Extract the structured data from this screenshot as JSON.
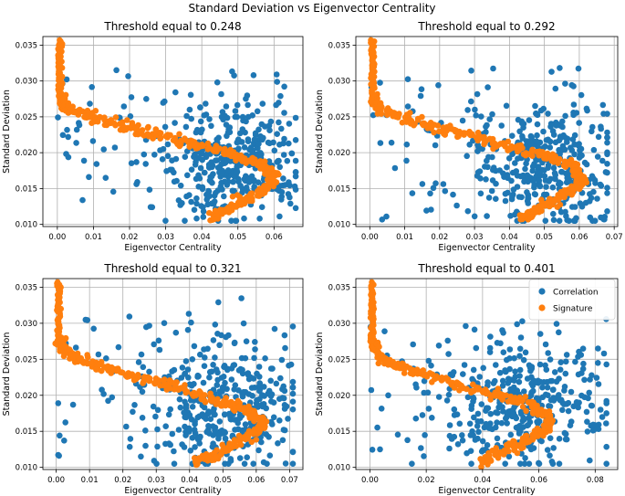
{
  "figure": {
    "title": "Standard Deviation vs Eigenvector Centrality"
  },
  "colors": {
    "correlation": "#1f77b4",
    "signature": "#ff7f0e",
    "grid": "#b0b0b0",
    "axes": "#000000"
  },
  "legend": {
    "placement": "upper-right of panel 4",
    "entries": [
      "Correlation",
      "Signature"
    ]
  },
  "chart_data": [
    {
      "type": "scatter",
      "title": "Threshold equal to 0.248",
      "xlabel": "Eigenvector Centrality",
      "ylabel": "Standard Deviation",
      "xlim": [
        -0.004,
        0.068
      ],
      "ylim": [
        0.0097,
        0.0362
      ],
      "xticks": [
        0.0,
        0.01,
        0.02,
        0.03,
        0.04,
        0.05,
        0.06
      ],
      "xtick_labels": [
        "0.00",
        "0.01",
        "0.02",
        "0.03",
        "0.04",
        "0.05",
        "0.06"
      ],
      "yticks": [
        0.01,
        0.015,
        0.02,
        0.025,
        0.03,
        0.035
      ],
      "ytick_labels": [
        "0.010",
        "0.015",
        "0.020",
        "0.025",
        "0.030",
        "0.035"
      ],
      "grid": true,
      "series": [
        {
          "name": "Correlation",
          "shape": "scattered cloud",
          "x_center": 0.048,
          "x_spread": 0.012,
          "x_max": 0.066,
          "y_range": [
            0.0105,
            0.0357
          ]
        },
        {
          "name": "Signature",
          "shape": "curved band",
          "path": [
            [
              0.0,
              0.0357
            ],
            [
              0.001,
              0.028
            ],
            [
              0.003,
              0.026
            ],
            [
              0.01,
              0.025
            ],
            [
              0.02,
              0.0235
            ],
            [
              0.03,
              0.0222
            ],
            [
              0.04,
              0.0208
            ],
            [
              0.05,
              0.0195
            ],
            [
              0.056,
              0.0185
            ],
            [
              0.06,
              0.0165
            ],
            [
              0.059,
              0.0155
            ],
            [
              0.052,
              0.0135
            ],
            [
              0.046,
              0.0118
            ],
            [
              0.043,
              0.0108
            ]
          ]
        }
      ]
    },
    {
      "type": "scatter",
      "title": "Threshold equal to 0.292",
      "xlabel": "Eigenvector Centrality",
      "ylabel": "Standard Deviation",
      "xlim": [
        -0.004,
        0.071
      ],
      "ylim": [
        0.0097,
        0.0362
      ],
      "xticks": [
        0.0,
        0.01,
        0.02,
        0.03,
        0.04,
        0.05,
        0.06,
        0.07
      ],
      "xtick_labels": [
        "0.00",
        "0.01",
        "0.02",
        "0.03",
        "0.04",
        "0.05",
        "0.06",
        "0.07"
      ],
      "yticks": [
        0.01,
        0.015,
        0.02,
        0.025,
        0.03,
        0.035
      ],
      "ytick_labels": [
        "0.010",
        "0.015",
        "0.020",
        "0.025",
        "0.030",
        "0.035"
      ],
      "grid": true,
      "series": [
        {
          "name": "Correlation",
          "shape": "scattered cloud",
          "x_center": 0.05,
          "x_spread": 0.013,
          "x_max": 0.068,
          "y_range": [
            0.0105,
            0.0357
          ]
        },
        {
          "name": "Signature",
          "shape": "curved band",
          "path": [
            [
              0.0,
              0.0357
            ],
            [
              0.001,
              0.028
            ],
            [
              0.003,
              0.026
            ],
            [
              0.01,
              0.025
            ],
            [
              0.02,
              0.0235
            ],
            [
              0.03,
              0.0222
            ],
            [
              0.04,
              0.0208
            ],
            [
              0.05,
              0.0195
            ],
            [
              0.057,
              0.0185
            ],
            [
              0.061,
              0.0165
            ],
            [
              0.06,
              0.0155
            ],
            [
              0.053,
              0.0135
            ],
            [
              0.047,
              0.0118
            ],
            [
              0.043,
              0.0108
            ]
          ]
        }
      ]
    },
    {
      "type": "scatter",
      "title": "Threshold equal to 0.321",
      "xlabel": "Eigenvector Centrality",
      "ylabel": "Standard Deviation",
      "xlim": [
        -0.004,
        0.074
      ],
      "ylim": [
        0.0097,
        0.0362
      ],
      "xticks": [
        0.0,
        0.01,
        0.02,
        0.03,
        0.04,
        0.05,
        0.06,
        0.07
      ],
      "xtick_labels": [
        "0.00",
        "0.01",
        "0.02",
        "0.03",
        "0.04",
        "0.05",
        "0.06",
        "0.07"
      ],
      "yticks": [
        0.01,
        0.015,
        0.02,
        0.025,
        0.03,
        0.035
      ],
      "ytick_labels": [
        "0.010",
        "0.015",
        "0.020",
        "0.025",
        "0.030",
        "0.035"
      ],
      "grid": true,
      "series": [
        {
          "name": "Correlation",
          "shape": "scattered cloud",
          "x_center": 0.05,
          "x_spread": 0.015,
          "x_max": 0.071,
          "y_range": [
            0.0105,
            0.0357
          ]
        },
        {
          "name": "Signature",
          "shape": "curved band",
          "path": [
            [
              0.0,
              0.0357
            ],
            [
              0.001,
              0.028
            ],
            [
              0.003,
              0.026
            ],
            [
              0.01,
              0.0245
            ],
            [
              0.02,
              0.023
            ],
            [
              0.03,
              0.0218
            ],
            [
              0.04,
              0.0205
            ],
            [
              0.05,
              0.0192
            ],
            [
              0.057,
              0.0182
            ],
            [
              0.062,
              0.0163
            ],
            [
              0.061,
              0.0153
            ],
            [
              0.054,
              0.0133
            ],
            [
              0.047,
              0.0117
            ],
            [
              0.041,
              0.0108
            ]
          ]
        }
      ]
    },
    {
      "type": "scatter",
      "title": "Threshold equal to 0.401",
      "xlabel": "Eigenvector Centrality",
      "ylabel": "Standard Deviation",
      "xlim": [
        -0.005,
        0.088
      ],
      "ylim": [
        0.0097,
        0.0362
      ],
      "xticks": [
        0.0,
        0.02,
        0.04,
        0.06,
        0.08
      ],
      "xtick_labels": [
        "0.00",
        "0.02",
        "0.04",
        "0.06",
        "0.08"
      ],
      "yticks": [
        0.01,
        0.015,
        0.02,
        0.025,
        0.03,
        0.035
      ],
      "ytick_labels": [
        "0.010",
        "0.015",
        "0.020",
        "0.025",
        "0.030",
        "0.035"
      ],
      "grid": true,
      "series": [
        {
          "name": "Correlation",
          "shape": "scattered cloud",
          "x_center": 0.055,
          "x_spread": 0.018,
          "x_max": 0.084,
          "y_range": [
            0.0105,
            0.0343
          ]
        },
        {
          "name": "Signature",
          "shape": "curved band",
          "path": [
            [
              0.0,
              0.0357
            ],
            [
              0.001,
              0.028
            ],
            [
              0.004,
              0.025
            ],
            [
              0.015,
              0.0235
            ],
            [
              0.03,
              0.0215
            ],
            [
              0.045,
              0.02
            ],
            [
              0.057,
              0.0188
            ],
            [
              0.064,
              0.017
            ],
            [
              0.063,
              0.0155
            ],
            [
              0.055,
              0.0137
            ],
            [
              0.046,
              0.012
            ],
            [
              0.039,
              0.0108
            ]
          ]
        }
      ]
    }
  ]
}
